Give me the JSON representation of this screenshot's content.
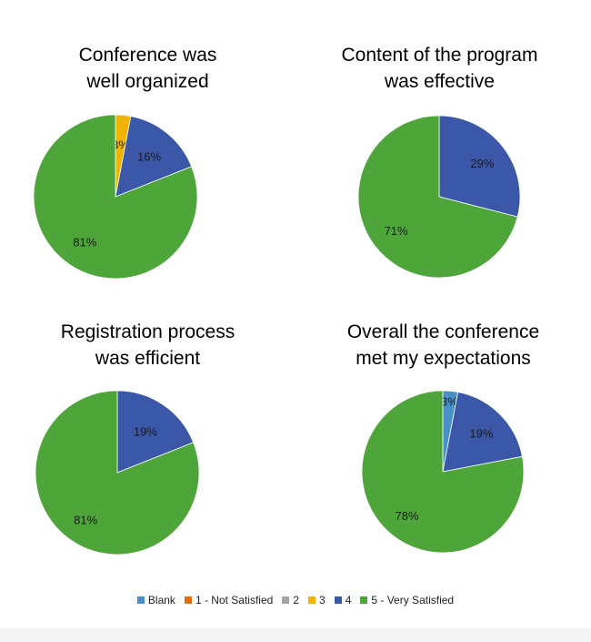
{
  "colors": {
    "Blank": "#4a90c8",
    "1 - Not Satisfied": "#e46c0a",
    "2": "#a5a5a5",
    "3": "#f0b400",
    "4": "#3a57a8",
    "5 - Very Satisfied": "#4ea63a"
  },
  "legend": [
    "Blank",
    "1 - Not Satisfied",
    "2",
    "3",
    "4",
    "5 - Very Satisfied"
  ],
  "chart_data": [
    {
      "type": "pie",
      "title": [
        "Conference was",
        "well organized"
      ],
      "slices": [
        {
          "category": "3",
          "value": 3,
          "label": "3%"
        },
        {
          "category": "4",
          "value": 16,
          "label": "16%"
        },
        {
          "category": "5 - Very Satisfied",
          "value": 81,
          "label": "81%"
        }
      ]
    },
    {
      "type": "pie",
      "title": [
        "Content of the program",
        "was effective"
      ],
      "slices": [
        {
          "category": "4",
          "value": 29,
          "label": "29%"
        },
        {
          "category": "5 - Very Satisfied",
          "value": 71,
          "label": "71%"
        }
      ]
    },
    {
      "type": "pie",
      "title": [
        "Registration process",
        "was efficient"
      ],
      "slices": [
        {
          "category": "4",
          "value": 19,
          "label": "19%"
        },
        {
          "category": "5 - Very Satisfied",
          "value": 81,
          "label": "81%"
        }
      ]
    },
    {
      "type": "pie",
      "title": [
        "Overall the conference",
        "met my expectations"
      ],
      "slices": [
        {
          "category": "Blank",
          "value": 3,
          "label": "3%"
        },
        {
          "category": "4",
          "value": 19,
          "label": "19%"
        },
        {
          "category": "5 - Very Satisfied",
          "value": 78,
          "label": "78%"
        }
      ]
    }
  ]
}
